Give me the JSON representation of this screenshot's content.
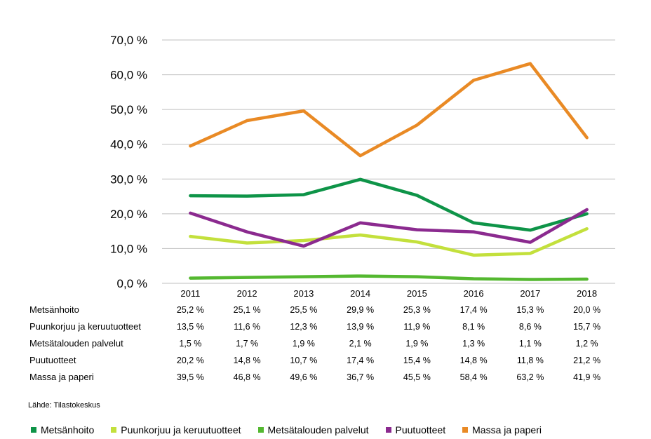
{
  "chart_data": {
    "type": "line",
    "title": "",
    "xlabel": "",
    "ylabel": "",
    "ylim": [
      0,
      70
    ],
    "yticks": [
      "0,0 %",
      "10,0 %",
      "20,0 %",
      "30,0 %",
      "40,0 %",
      "50,0 %",
      "60,0 %",
      "70,0 %"
    ],
    "categories": [
      "2011",
      "2012",
      "2013",
      "2014",
      "2015",
      "2016",
      "2017",
      "2018"
    ],
    "grid": true,
    "legend_position": "bottom",
    "series": [
      {
        "name": "Metsänhoito",
        "color": "#0e9448",
        "values": [
          25.2,
          25.1,
          25.5,
          29.9,
          25.3,
          17.4,
          15.3,
          20.0
        ],
        "labels": [
          "25,2 %",
          "25,1 %",
          "25,5 %",
          "29,9 %",
          "25,3 %",
          "17,4 %",
          "15,3 %",
          "20,0 %"
        ]
      },
      {
        "name": "Puunkorjuu ja keruutuotteet",
        "color": "#c3e03c",
        "values": [
          13.5,
          11.6,
          12.3,
          13.9,
          11.9,
          8.1,
          8.6,
          15.7
        ],
        "labels": [
          "13,5 %",
          "11,6 %",
          "12,3 %",
          "13,9 %",
          "11,9 %",
          "8,1 %",
          "8,6 %",
          "15,7 %"
        ]
      },
      {
        "name": "Metsätalouden palvelut",
        "color": "#54b830",
        "values": [
          1.5,
          1.7,
          1.9,
          2.1,
          1.9,
          1.3,
          1.1,
          1.2
        ],
        "labels": [
          "1,5 %",
          "1,7 %",
          "1,9 %",
          "2,1 %",
          "1,9 %",
          "1,3 %",
          "1,1 %",
          "1,2 %"
        ]
      },
      {
        "name": "Puutuotteet",
        "color": "#8b2a8f",
        "values": [
          20.2,
          14.8,
          10.7,
          17.4,
          15.4,
          14.8,
          11.8,
          21.2
        ],
        "labels": [
          "20,2 %",
          "14,8 %",
          "10,7 %",
          "17,4 %",
          "15,4 %",
          "14,8 %",
          "11,8 %",
          "21,2 %"
        ]
      },
      {
        "name": "Massa ja paperi",
        "color": "#e98a25",
        "values": [
          39.5,
          46.8,
          49.6,
          36.7,
          45.5,
          58.4,
          63.2,
          41.9
        ],
        "labels": [
          "39,5 %",
          "46,8 %",
          "49,6 %",
          "36,7 %",
          "45,5 %",
          "58,4 %",
          "63,2 %",
          "41,9 %"
        ]
      }
    ]
  },
  "source": "Lähde: Tilastokeskus"
}
